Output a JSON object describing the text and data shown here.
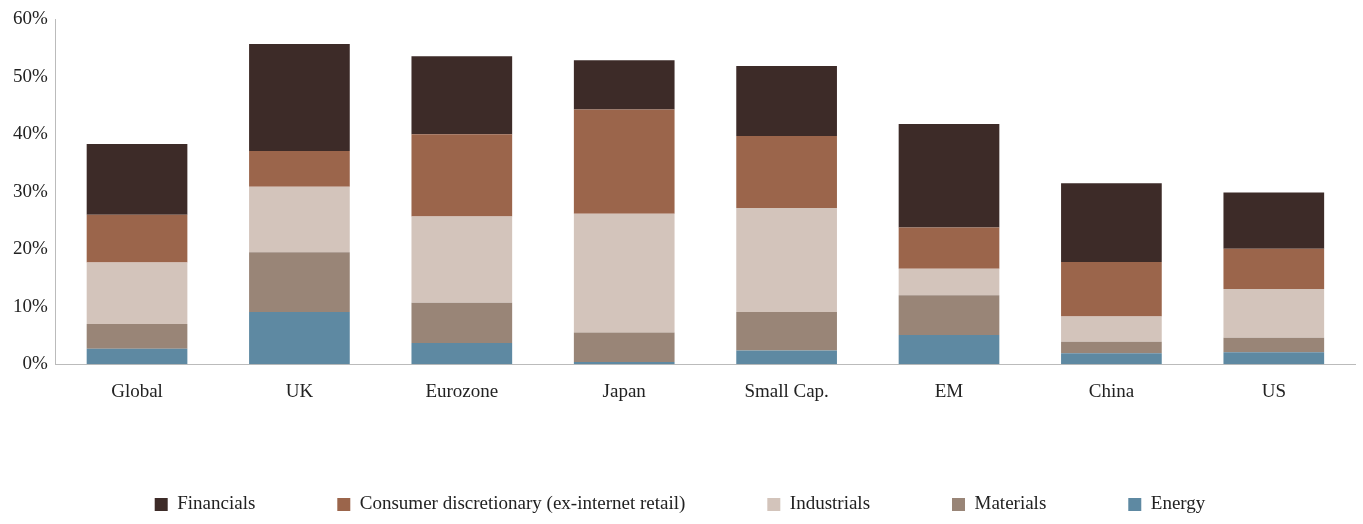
{
  "chart_data": {
    "type": "bar",
    "stacked": true,
    "categories": [
      "Global",
      "UK",
      "Eurozone",
      "Japan",
      "Small Cap.",
      "EM",
      "China",
      "US"
    ],
    "series": [
      {
        "name": "Energy",
        "color": "#5e89a2",
        "values": [
          2.7,
          9.1,
          3.7,
          0.4,
          2.4,
          5.1,
          1.9,
          2.1
        ]
      },
      {
        "name": "Materials",
        "color": "#998577",
        "values": [
          4.3,
          10.4,
          7.0,
          5.1,
          6.7,
          6.9,
          2.0,
          2.5
        ]
      },
      {
        "name": "Industrials",
        "color": "#d3c4bb",
        "values": [
          10.7,
          11.4,
          15.0,
          20.7,
          18.1,
          4.6,
          4.4,
          8.5
        ]
      },
      {
        "name": "Consumer discretionary (ex-internet retail)",
        "color": "#9b654b",
        "values": [
          8.3,
          6.2,
          14.3,
          18.1,
          12.5,
          7.2,
          9.5,
          7.0
        ]
      },
      {
        "name": "Financials",
        "color": "#3d2b28",
        "values": [
          12.3,
          18.6,
          13.6,
          8.6,
          12.2,
          18.0,
          13.7,
          9.8
        ]
      }
    ],
    "ylim": [
      0,
      60
    ],
    "yticks": [
      {
        "value": 0,
        "label": "0%"
      },
      {
        "value": 10,
        "label": "10%"
      },
      {
        "value": 20,
        "label": "20%"
      },
      {
        "value": 30,
        "label": "30%"
      },
      {
        "value": 40,
        "label": "40%"
      },
      {
        "value": 50,
        "label": "50%"
      },
      {
        "value": 60,
        "label": "60%"
      }
    ],
    "grid": false,
    "legend": "bottom"
  }
}
